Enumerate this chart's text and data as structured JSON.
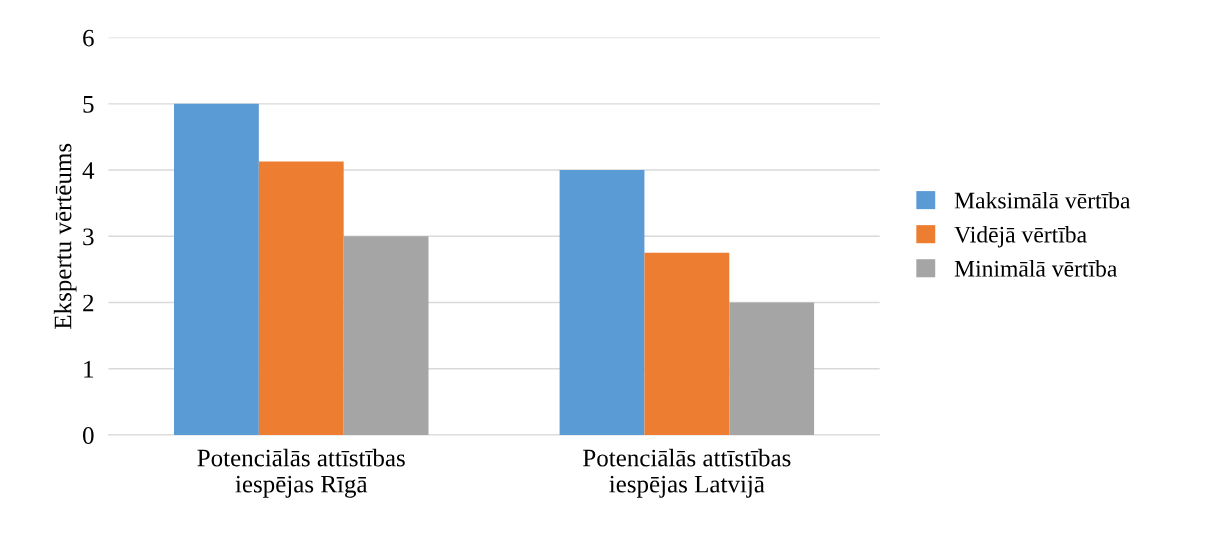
{
  "chart_data": {
    "type": "bar",
    "ylabel": "Ekspertu vērtēums",
    "categories": [
      "Potenciālās attīstības\niespējas Rīgā",
      "Potenciālās attīstības\niespējas Latvijā"
    ],
    "series": [
      {
        "name": "Maksimālā vērtība",
        "color": "#5b9bd5",
        "values": [
          5,
          4
        ]
      },
      {
        "name": "Vidējā vērtība",
        "color": "#ed7d31",
        "values": [
          4.13,
          2.75
        ]
      },
      {
        "name": "Minimālā vērtība",
        "color": "#a5a5a5",
        "values": [
          3,
          2
        ]
      }
    ],
    "ylim": [
      0,
      6
    ],
    "yticks": [
      0,
      1,
      2,
      3,
      4,
      5,
      6
    ],
    "grid": "y",
    "legend": "right"
  }
}
